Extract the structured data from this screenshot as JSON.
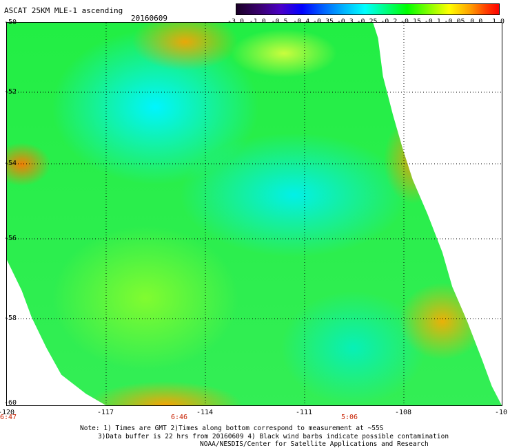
{
  "header": {
    "title": "ASCAT 25KM MLE-1 ascending",
    "date": "20160609"
  },
  "colorbar": {
    "labels": [
      "-3.0",
      "-1.0",
      "-0.5",
      "-0.4",
      "-0.35",
      "-0.3",
      "-0.25",
      "-0.2",
      "-0.15",
      "-0.1",
      "-0.05",
      "0.0",
      "1.0"
    ]
  },
  "axes": {
    "x_labels": [
      "-120",
      "-117",
      "-114",
      "-111",
      "-108",
      "-10"
    ],
    "y_labels": [
      "-50",
      "-52",
      "-54",
      "-56",
      "-58",
      "-60"
    ],
    "time_labels": [
      "6:47",
      "6:46",
      "5:06"
    ]
  },
  "footer": {
    "line1": "Note: 1) Times are GMT 2)Times along bottom correspond to measurement at ~55S",
    "line2": "3)Data buffer is 22 hrs from 20160609 4) Black wind barbs indicate possible contamination",
    "line3": "NOAA/NESDIS/Center for Satellite Applications and Research"
  }
}
